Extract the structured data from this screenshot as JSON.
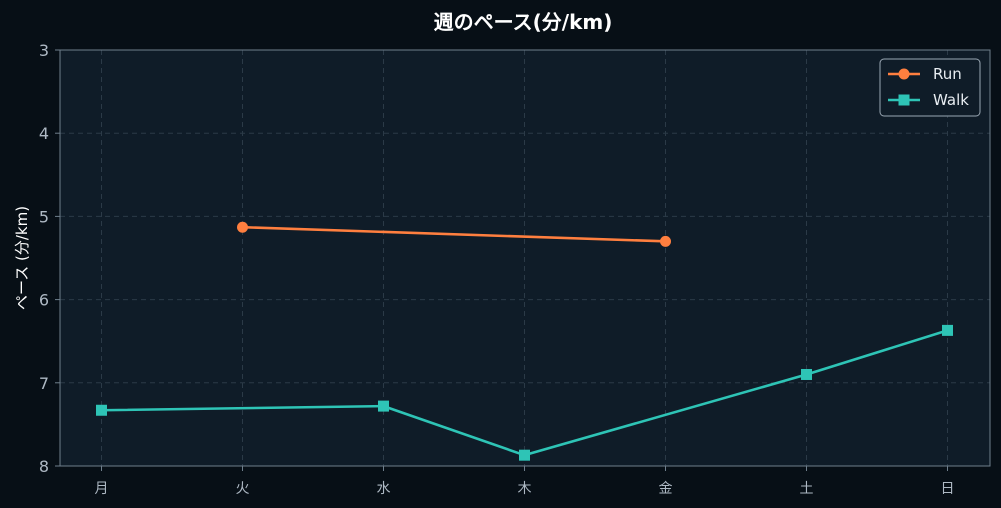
{
  "chart_data": {
    "type": "line",
    "title": "週のペース(分/km)",
    "xlabel": "",
    "ylabel": "ペース (分/km)",
    "categories": [
      "月",
      "火",
      "水",
      "木",
      "金",
      "土",
      "日"
    ],
    "yticks": [
      "3",
      "4",
      "5",
      "6",
      "7",
      "8"
    ],
    "ylim": [
      3,
      8
    ],
    "y_inverted": true,
    "grid": true,
    "legend_position": "top-right",
    "series": [
      {
        "name": "Run",
        "color": "#ff7f3f",
        "marker": "circle",
        "values": [
          null,
          5.13,
          null,
          null,
          5.3,
          null,
          null
        ]
      },
      {
        "name": "Walk",
        "color": "#2ec4b6",
        "marker": "square",
        "values": [
          7.33,
          null,
          7.28,
          7.87,
          null,
          6.9,
          6.37
        ]
      }
    ],
    "colors": {
      "background": "#070f16",
      "plot_area": "#0f1c28",
      "grid": "#2b3a47",
      "axis": "#6f7f8c"
    }
  }
}
